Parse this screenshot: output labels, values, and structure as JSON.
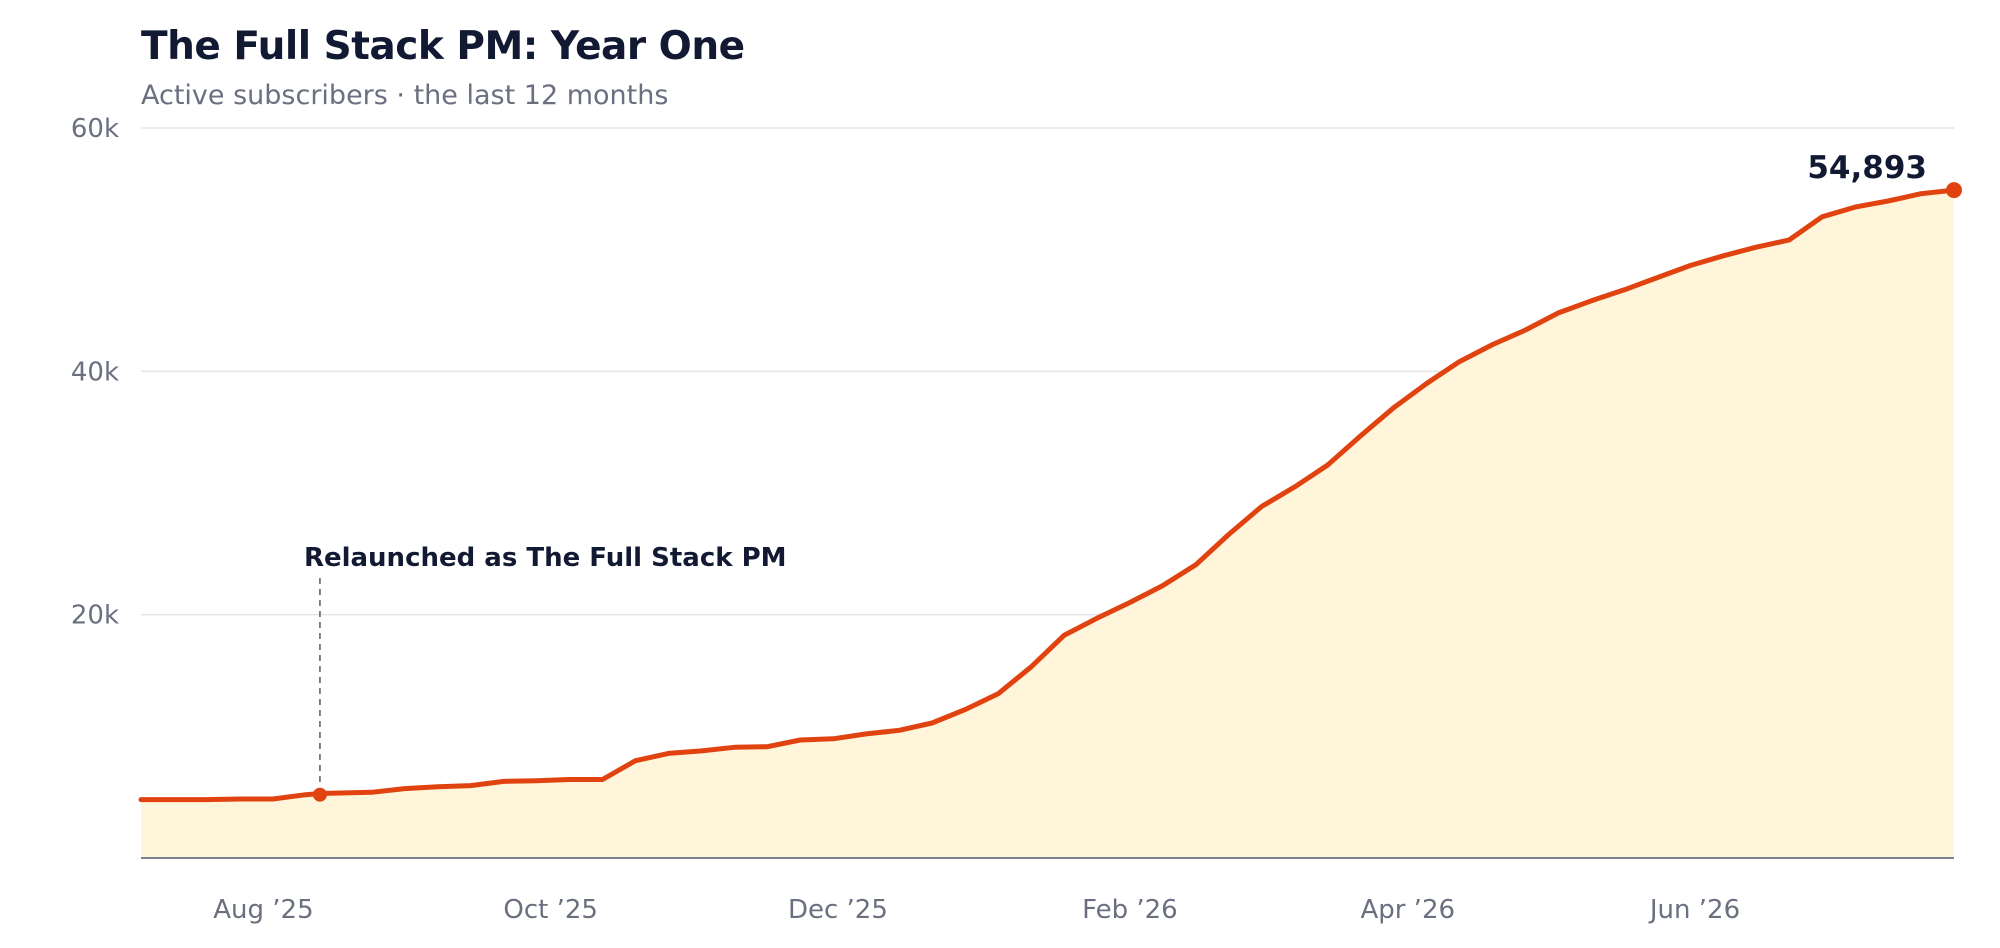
{
  "chart_data": {
    "type": "area",
    "title": "The Full Stack PM: Year One",
    "subtitle": "Active subscribers · the last 12 months",
    "xlabel": "",
    "ylabel": "",
    "ylim": [
      0,
      60000
    ],
    "yticks": [
      20000,
      40000,
      60000
    ],
    "ytick_labels": [
      "20k",
      "40k",
      "60k"
    ],
    "xlim": [
      "2025-07-06",
      "2026-07-26"
    ],
    "xticks": [
      "2025-08-01",
      "2025-10-01",
      "2025-12-01",
      "2026-02-01",
      "2026-04-01",
      "2026-06-01"
    ],
    "xtick_labels": [
      "Aug ’25",
      "Oct ’25",
      "Dec ’25",
      "Feb ’26",
      "Apr ’26",
      "Jun ’26"
    ],
    "grid": "horizontal",
    "colors": {
      "line": "#e0430f",
      "fill": "#fff5db",
      "grid": "#e4e5ea",
      "axis": "#7d8190"
    },
    "annotation": {
      "label": "Relaunched as The Full Stack PM",
      "x": "2025-08-13",
      "y": 5200
    },
    "end_label": "54,893",
    "series": [
      {
        "x": [
          "2025-07-06",
          "2025-07-13",
          "2025-07-20",
          "2025-07-27",
          "2025-08-03",
          "2025-08-10",
          "2025-08-13",
          "2025-08-24",
          "2025-08-31",
          "2025-09-07",
          "2025-09-14",
          "2025-09-21",
          "2025-09-28",
          "2025-10-05",
          "2025-10-12",
          "2025-10-19",
          "2025-10-26",
          "2025-11-02",
          "2025-11-09",
          "2025-11-16",
          "2025-11-23",
          "2025-11-30",
          "2025-12-07",
          "2025-12-14",
          "2025-12-21",
          "2025-12-28",
          "2026-01-04",
          "2026-01-11",
          "2026-01-18",
          "2026-01-25",
          "2026-02-01",
          "2026-02-08",
          "2026-02-15",
          "2026-02-22",
          "2026-03-01",
          "2026-03-08",
          "2026-03-15",
          "2026-03-22",
          "2026-03-29",
          "2026-04-05",
          "2026-04-12",
          "2026-04-19",
          "2026-04-26",
          "2026-05-03",
          "2026-05-10",
          "2026-05-17",
          "2026-05-24",
          "2026-05-31",
          "2026-06-07",
          "2026-06-14",
          "2026-06-21",
          "2026-06-28",
          "2026-07-05",
          "2026-07-12",
          "2026-07-19",
          "2026-07-26"
        ],
        "y": [
          4800,
          4800,
          4800,
          4850,
          4850,
          5200,
          5300,
          5400,
          5700,
          5850,
          5950,
          6300,
          6350,
          6450,
          6450,
          8000,
          8600,
          8800,
          9100,
          9150,
          9700,
          9800,
          10200,
          10500,
          11100,
          12200,
          13500,
          15700,
          18300,
          19700,
          21000,
          22400,
          24100,
          26600,
          28900,
          30500,
          32300,
          34700,
          37000,
          39000,
          40800,
          42200,
          43400,
          44800,
          45800,
          46700,
          47700,
          48700,
          49500,
          50200,
          50800,
          52700,
          53500,
          54000,
          54600,
          54893
        ]
      }
    ]
  }
}
